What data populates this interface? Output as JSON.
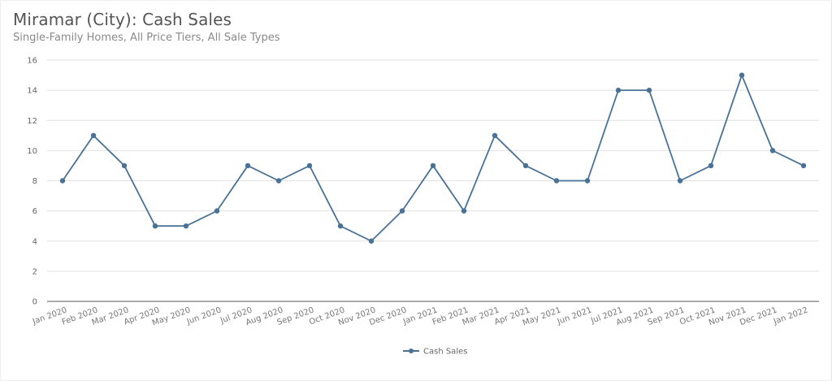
{
  "header": {
    "title": "Miramar (City): Cash Sales",
    "subtitle": "Single-Family Homes, All Price Tiers, All Sale Types"
  },
  "colors": {
    "series": "#4a7196",
    "grid": "#e0e0e0",
    "axis": "#7a7a7a"
  },
  "chart_data": {
    "type": "line",
    "title": "Miramar (City): Cash Sales",
    "subtitle": "Single-Family Homes, All Price Tiers, All Sale Types",
    "xlabel": "",
    "ylabel": "",
    "ylim": [
      0,
      16
    ],
    "yticks": [
      0,
      2,
      4,
      6,
      8,
      10,
      12,
      14,
      16
    ],
    "grid": true,
    "legend_position": "bottom",
    "categories": [
      "Jan 2020",
      "Feb 2020",
      "Mar 2020",
      "Apr 2020",
      "May 2020",
      "Jun 2020",
      "Jul 2020",
      "Aug 2020",
      "Sep 2020",
      "Oct 2020",
      "Nov 2020",
      "Dec 2020",
      "Jan 2021",
      "Feb 2021",
      "Mar 2021",
      "Apr 2021",
      "May 2021",
      "Jun 2021",
      "Jul 2021",
      "Aug 2021",
      "Sep 2021",
      "Oct 2021",
      "Nov 2021",
      "Dec 2021",
      "Jan 2022"
    ],
    "series": [
      {
        "name": "Cash Sales",
        "values": [
          8,
          11,
          9,
          5,
          5,
          6,
          9,
          8,
          9,
          5,
          4,
          6,
          9,
          6,
          11,
          9,
          8,
          8,
          14,
          14,
          8,
          9,
          15,
          10,
          9
        ]
      }
    ]
  },
  "legend": {
    "items": [
      {
        "label": "Cash Sales"
      }
    ]
  }
}
